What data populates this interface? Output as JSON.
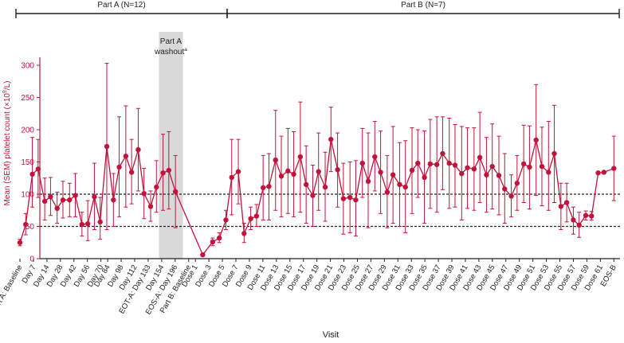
{
  "chart_data": {
    "type": "line",
    "title": "",
    "xlabel": "Visit",
    "ylabel_main": "Mean (SEM) platelet count (×10",
    "ylabel_sup": "9",
    "ylabel_tail": "/L)",
    "ylim": [
      0,
      300
    ],
    "yticks": [
      0,
      50,
      100,
      150,
      200,
      250,
      300
    ],
    "reference_lines": [
      50,
      100
    ],
    "grid": false,
    "legend": "none",
    "color": "#c0143c",
    "phases": [
      {
        "label": "Part A (N=12)",
        "from": 0,
        "to": 20
      },
      {
        "label": "Part B (N=7)",
        "from": 20,
        "to": 69
      }
    ],
    "washout": {
      "line1": "Part A",
      "line2": "washout",
      "marker": "a",
      "from": 16.8,
      "to": 19.7
    },
    "ticks": [
      {
        "i": 0,
        "label": "Part A: Baseline"
      },
      {
        "i": 2,
        "label": "Day 7"
      },
      {
        "i": 4,
        "label": "Day 14"
      },
      {
        "i": 6,
        "label": "Day 28"
      },
      {
        "i": 8,
        "label": "Day 42"
      },
      {
        "i": 10,
        "label": "Day 56"
      },
      {
        "i": 12,
        "label": "Day 70"
      },
      {
        "i": 13,
        "label": "Day 84"
      },
      {
        "i": 15,
        "label": "Day 98"
      },
      {
        "i": 17,
        "label": "Day 112"
      },
      {
        "i": 19,
        "label": "EOT-A: Day 133"
      },
      {
        "i": 21,
        "label": "Day 154"
      },
      {
        "i": 23,
        "label": "EOS-A: Day 196"
      },
      {
        "i": 25,
        "label": "Part B: Baseline"
      },
      {
        "i": 26,
        "label": "Dose 1"
      },
      {
        "i": 28,
        "label": "Dose 3"
      },
      {
        "i": 30,
        "label": "Dose 5"
      },
      {
        "i": 32,
        "label": "Dose 7"
      },
      {
        "i": 34,
        "label": "Dose 9"
      },
      {
        "i": 36,
        "label": "Dose 11"
      },
      {
        "i": 38,
        "label": "Dose 13"
      },
      {
        "i": 40,
        "label": "Dose 15"
      },
      {
        "i": 42,
        "label": "Dose 17"
      },
      {
        "i": 44,
        "label": "Dose 19"
      },
      {
        "i": 46,
        "label": "Dose 21"
      },
      {
        "i": 48,
        "label": "Dose 23"
      },
      {
        "i": 50,
        "label": "Dose 25"
      },
      {
        "i": 52,
        "label": "Dose 27"
      },
      {
        "i": 54,
        "label": "Dose 29"
      },
      {
        "i": 56,
        "label": "Dose 31"
      },
      {
        "i": 58,
        "label": "Dose 33"
      },
      {
        "i": 60,
        "label": "Dose 35"
      },
      {
        "i": 62,
        "label": "Dose 37"
      },
      {
        "i": 64,
        "label": "Dose 39"
      },
      {
        "i": 66,
        "label": "Dose 41"
      },
      {
        "i": 68,
        "label": "Dose 43"
      },
      {
        "i": 70,
        "label": "Dose 45"
      },
      {
        "i": 72,
        "label": "Dose 47"
      },
      {
        "i": 74,
        "label": "Dose 49"
      },
      {
        "i": 76,
        "label": "Dose 51"
      },
      {
        "i": 78,
        "label": "Dose 53"
      },
      {
        "i": 80,
        "label": "Dose 55"
      },
      {
        "i": 82,
        "label": "Dose 57"
      },
      {
        "i": 84,
        "label": "Dose 59"
      },
      {
        "i": 86,
        "label": "Dose 61"
      },
      {
        "i": 88,
        "label": "EOS-B"
      }
    ],
    "points": [
      {
        "x": 0,
        "mean": 25,
        "low": 20,
        "high": 30
      },
      {
        "x": 0.7,
        "mean": 53,
        "low": 37,
        "high": 70
      },
      {
        "x": 1.5,
        "mean": 131,
        "low": 80,
        "high": 188
      },
      {
        "x": 2.2,
        "mean": 139,
        "low": 95,
        "high": 185
      },
      {
        "x": 3.0,
        "mean": 89,
        "low": 60,
        "high": 125
      },
      {
        "x": 3.7,
        "mean": 96,
        "low": 67,
        "high": 126
      },
      {
        "x": 4.5,
        "mean": 78,
        "low": 55,
        "high": 103
      },
      {
        "x": 5.2,
        "mean": 91,
        "low": 63,
        "high": 120
      },
      {
        "x": 6.0,
        "mean": 91,
        "low": 65,
        "high": 117
      },
      {
        "x": 6.7,
        "mean": 98,
        "low": 65,
        "high": 132
      },
      {
        "x": 7.5,
        "mean": 53,
        "low": 35,
        "high": 72
      },
      {
        "x": 8.2,
        "mean": 54,
        "low": 28,
        "high": 90
      },
      {
        "x": 9.0,
        "mean": 96,
        "low": 45,
        "high": 148
      },
      {
        "x": 9.7,
        "mean": 57,
        "low": 30,
        "high": 95
      },
      {
        "x": 10.5,
        "mean": 174,
        "low": 45,
        "high": 303
      },
      {
        "x": 11.3,
        "mean": 91,
        "low": 50,
        "high": 132
      },
      {
        "x": 12.0,
        "mean": 142,
        "low": 65,
        "high": 220
      },
      {
        "x": 12.8,
        "mean": 159,
        "low": 80,
        "high": 237
      },
      {
        "x": 13.5,
        "mean": 134,
        "low": 85,
        "high": 185
      },
      {
        "x": 14.3,
        "mean": 169,
        "low": 105,
        "high": 233
      },
      {
        "x": 15.0,
        "mean": 101,
        "low": 62,
        "high": 140
      },
      {
        "x": 15.8,
        "mean": 81,
        "low": 58,
        "high": 105
      },
      {
        "x": 16.5,
        "mean": 111,
        "low": 72,
        "high": 152
      },
      {
        "x": 17.3,
        "mean": 133,
        "low": 75,
        "high": 193
      },
      {
        "x": 18.0,
        "mean": 137,
        "low": 77,
        "high": 197
      },
      {
        "x": 18.8,
        "mean": 104,
        "low": 48,
        "high": 160
      },
      {
        "x": 22.1,
        "mean": 6,
        "low": 4,
        "high": 8
      },
      {
        "x": 23.3,
        "mean": 26,
        "low": 20,
        "high": 32
      },
      {
        "x": 24.1,
        "mean": 32,
        "low": 25,
        "high": 40
      },
      {
        "x": 24.9,
        "mean": 60,
        "low": 45,
        "high": 75
      },
      {
        "x": 25.6,
        "mean": 126,
        "low": 68,
        "high": 185
      },
      {
        "x": 26.4,
        "mean": 135,
        "low": 85,
        "high": 185
      },
      {
        "x": 27.1,
        "mean": 39,
        "low": 25,
        "high": 55
      },
      {
        "x": 27.9,
        "mean": 62,
        "low": 45,
        "high": 80
      },
      {
        "x": 28.6,
        "mean": 66,
        "low": 50,
        "high": 84
      },
      {
        "x": 29.4,
        "mean": 110,
        "low": 60,
        "high": 160
      },
      {
        "x": 30.1,
        "mean": 112,
        "low": 60,
        "high": 163
      },
      {
        "x": 30.9,
        "mean": 153,
        "low": 75,
        "high": 230
      },
      {
        "x": 31.6,
        "mean": 128,
        "low": 65,
        "high": 190
      },
      {
        "x": 32.4,
        "mean": 136,
        "low": 70,
        "high": 202
      },
      {
        "x": 33.1,
        "mean": 131,
        "low": 65,
        "high": 197
      },
      {
        "x": 33.9,
        "mean": 158,
        "low": 72,
        "high": 243
      },
      {
        "x": 34.6,
        "mean": 115,
        "low": 55,
        "high": 175
      },
      {
        "x": 35.4,
        "mean": 98,
        "low": 50,
        "high": 145
      },
      {
        "x": 36.1,
        "mean": 135,
        "low": 75,
        "high": 195
      },
      {
        "x": 36.9,
        "mean": 111,
        "low": 58,
        "high": 165
      },
      {
        "x": 37.6,
        "mean": 185,
        "low": 135,
        "high": 235
      },
      {
        "x": 38.4,
        "mean": 138,
        "low": 80,
        "high": 195
      },
      {
        "x": 39.1,
        "mean": 93,
        "low": 38,
        "high": 148
      },
      {
        "x": 39.9,
        "mean": 95,
        "low": 40,
        "high": 150
      },
      {
        "x": 40.6,
        "mean": 91,
        "low": 35,
        "high": 152
      },
      {
        "x": 41.4,
        "mean": 148,
        "low": 95,
        "high": 202
      },
      {
        "x": 42.1,
        "mean": 120,
        "low": 48,
        "high": 195
      },
      {
        "x": 42.9,
        "mean": 158,
        "low": 105,
        "high": 213
      },
      {
        "x": 43.6,
        "mean": 134,
        "low": 70,
        "high": 198
      },
      {
        "x": 44.4,
        "mean": 103,
        "low": 48,
        "high": 160
      },
      {
        "x": 45.1,
        "mean": 130,
        "low": 55,
        "high": 205
      },
      {
        "x": 45.9,
        "mean": 115,
        "low": 50,
        "high": 180
      },
      {
        "x": 46.6,
        "mean": 111,
        "low": 40,
        "high": 183
      },
      {
        "x": 47.4,
        "mean": 137,
        "low": 70,
        "high": 203
      },
      {
        "x": 48.1,
        "mean": 148,
        "low": 95,
        "high": 200
      },
      {
        "x": 48.9,
        "mean": 126,
        "low": 55,
        "high": 198
      },
      {
        "x": 49.6,
        "mean": 147,
        "low": 78,
        "high": 216
      },
      {
        "x": 50.4,
        "mean": 146,
        "low": 72,
        "high": 220
      },
      {
        "x": 51.1,
        "mean": 163,
        "low": 107,
        "high": 220
      },
      {
        "x": 51.9,
        "mean": 148,
        "low": 78,
        "high": 218
      },
      {
        "x": 52.6,
        "mean": 145,
        "low": 80,
        "high": 208
      },
      {
        "x": 53.4,
        "mean": 132,
        "low": 60,
        "high": 205
      },
      {
        "x": 54.1,
        "mean": 141,
        "low": 78,
        "high": 203
      },
      {
        "x": 54.9,
        "mean": 139,
        "low": 75,
        "high": 203
      },
      {
        "x": 55.6,
        "mean": 157,
        "low": 87,
        "high": 227
      },
      {
        "x": 56.4,
        "mean": 130,
        "low": 72,
        "high": 188
      },
      {
        "x": 57.1,
        "mean": 143,
        "low": 77,
        "high": 209
      },
      {
        "x": 57.9,
        "mean": 129,
        "low": 68,
        "high": 190
      },
      {
        "x": 58.6,
        "mean": 108,
        "low": 55,
        "high": 163
      },
      {
        "x": 59.4,
        "mean": 97,
        "low": 65,
        "high": 130
      },
      {
        "x": 60.1,
        "mean": 117,
        "low": 75,
        "high": 160
      },
      {
        "x": 60.9,
        "mean": 147,
        "low": 87,
        "high": 207
      },
      {
        "x": 61.6,
        "mean": 142,
        "low": 77,
        "high": 206
      },
      {
        "x": 62.4,
        "mean": 184,
        "low": 98,
        "high": 270
      },
      {
        "x": 63.1,
        "mean": 143,
        "low": 82,
        "high": 204
      },
      {
        "x": 63.9,
        "mean": 134,
        "low": 75,
        "high": 213
      },
      {
        "x": 64.6,
        "mean": 163,
        "low": 87,
        "high": 238
      },
      {
        "x": 65.4,
        "mean": 81,
        "low": 45,
        "high": 117
      },
      {
        "x": 66.1,
        "mean": 87,
        "low": 57,
        "high": 117
      },
      {
        "x": 66.9,
        "mean": 60,
        "low": 38,
        "high": 80
      },
      {
        "x": 67.6,
        "mean": 52,
        "low": 33,
        "high": 72
      },
      {
        "x": 68.4,
        "mean": 67,
        "low": 60,
        "high": 74
      },
      {
        "x": 69.1,
        "mean": 66,
        "low": 60,
        "high": 73
      },
      {
        "x": 69.9,
        "mean": 133,
        "low": 133,
        "high": 133
      },
      {
        "x": 70.6,
        "mean": 134,
        "low": 134,
        "high": 134
      },
      {
        "x": 71.8,
        "mean": 140,
        "low": 90,
        "high": 190
      }
    ]
  }
}
